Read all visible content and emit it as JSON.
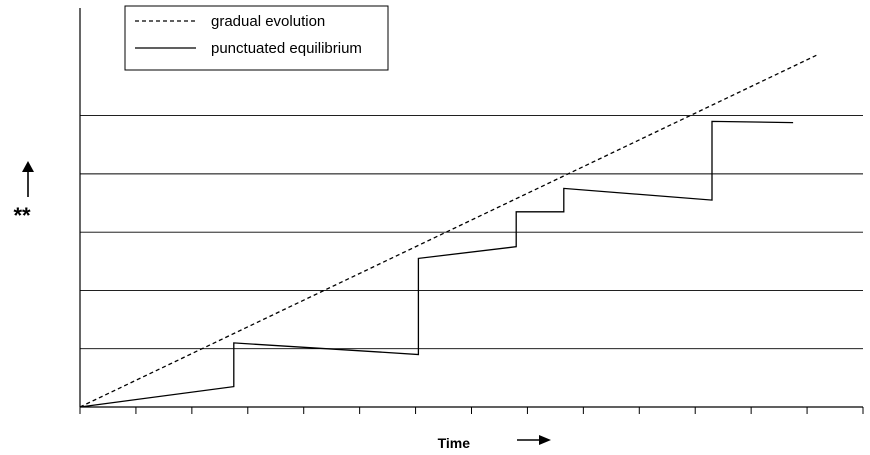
{
  "chart_data": {
    "type": "line",
    "title": "",
    "xlabel": "Time",
    "ylabel": "**",
    "xlim": [
      0,
      14
    ],
    "ylim": [
      0,
      6.4
    ],
    "grid": "horizontal",
    "legend_position": "top-left",
    "series": [
      {
        "name": "gradual evolution",
        "style": "dashed",
        "points": [
          [
            0,
            0
          ],
          [
            13.2,
            6.05
          ]
        ]
      },
      {
        "name": "punctuated equilibrium",
        "style": "solid",
        "points": [
          [
            0,
            0
          ],
          [
            2.75,
            0.35
          ],
          [
            2.75,
            1.1
          ],
          [
            6.05,
            0.9
          ],
          [
            6.05,
            2.55
          ],
          [
            7.8,
            2.75
          ],
          [
            7.8,
            3.35
          ],
          [
            8.65,
            3.35
          ],
          [
            8.65,
            3.75
          ],
          [
            11.3,
            3.55
          ],
          [
            11.3,
            4.9
          ],
          [
            12.75,
            4.88
          ]
        ]
      }
    ],
    "gridlines_y": [
      1,
      2,
      3,
      4,
      5
    ],
    "x_ticks": 14,
    "colors": {
      "line": "#000000",
      "grid": "#000000"
    }
  }
}
